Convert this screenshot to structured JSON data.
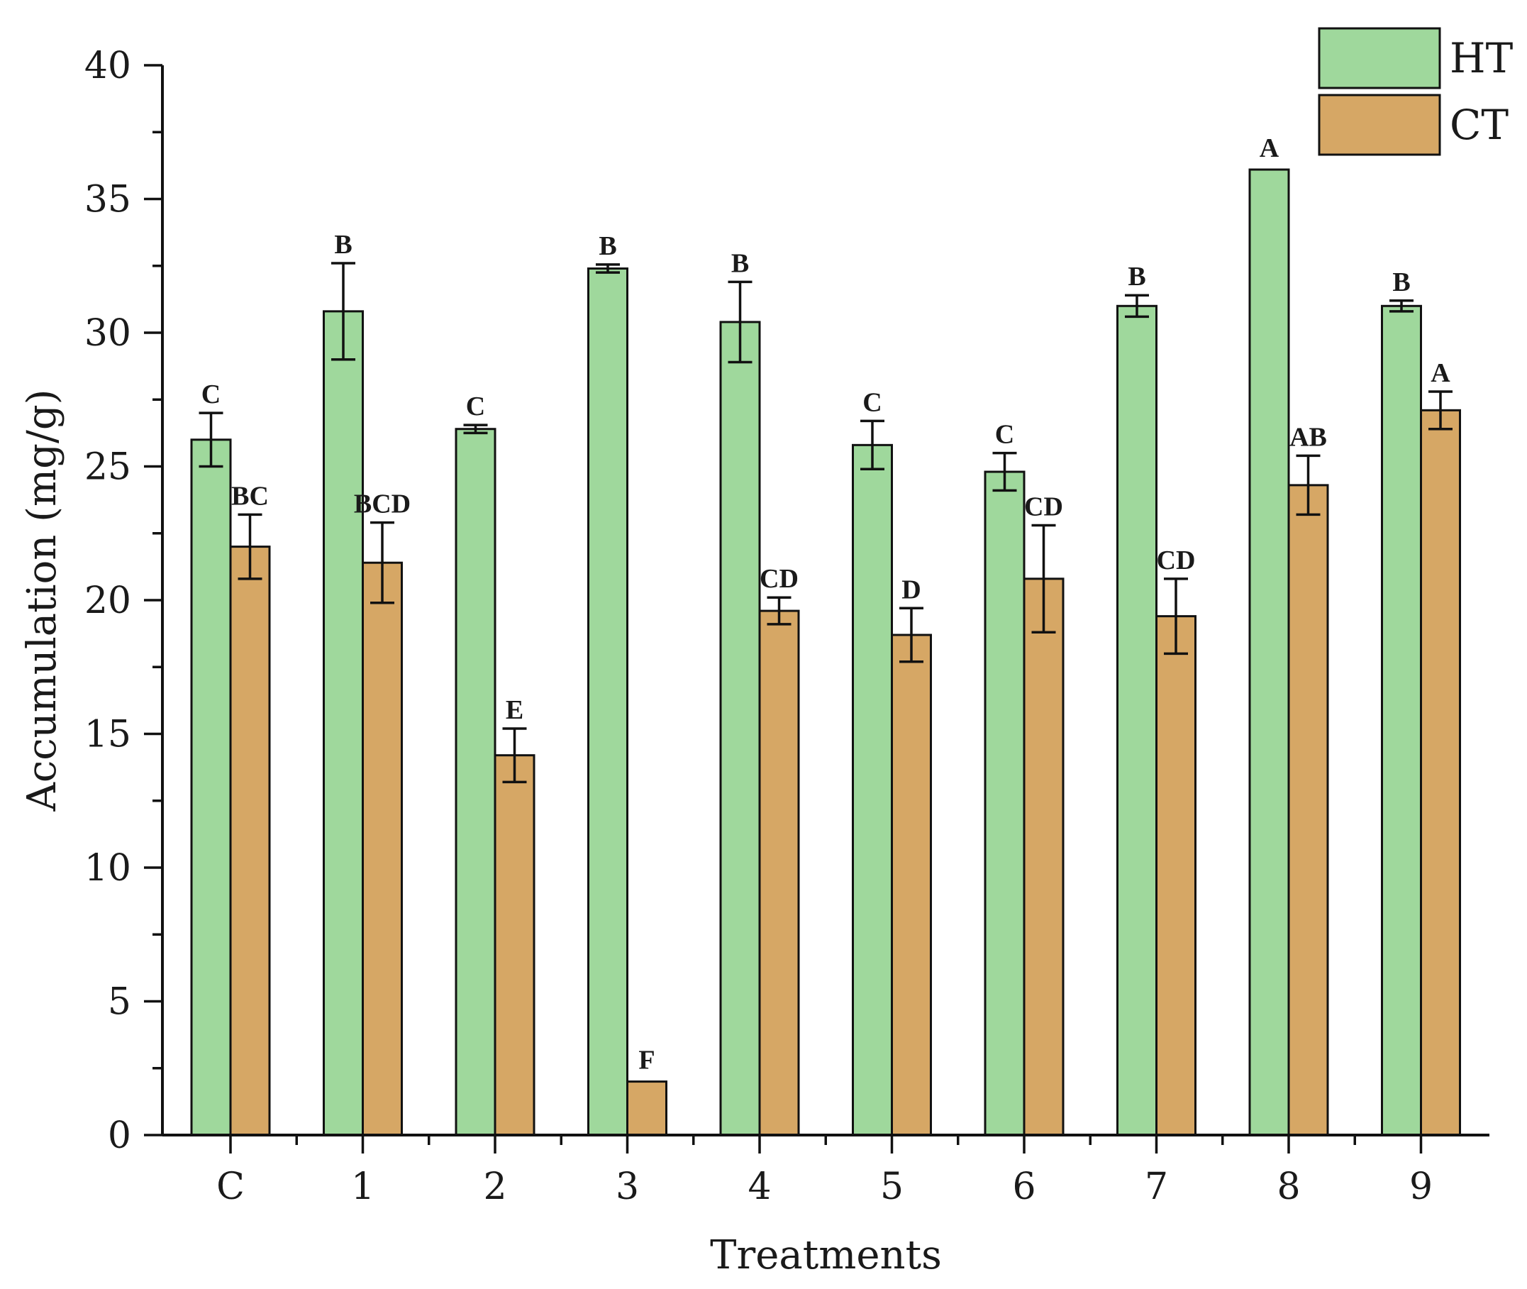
{
  "chart_data": {
    "type": "bar",
    "title": "",
    "xlabel": "Treatments",
    "ylabel": "Accumulation (mg/g)",
    "ylim": [
      0,
      40
    ],
    "yticks": [
      0,
      5,
      10,
      15,
      20,
      25,
      30,
      35,
      40
    ],
    "categories": [
      "C",
      "1",
      "2",
      "3",
      "4",
      "5",
      "6",
      "7",
      "8",
      "9"
    ],
    "series": [
      {
        "name": "HT",
        "color": "#9fd89c",
        "values": [
          26.0,
          30.8,
          26.4,
          32.4,
          30.4,
          25.8,
          24.8,
          31.0,
          36.1,
          31.0
        ],
        "errors": [
          1.0,
          1.8,
          0.15,
          0.15,
          1.5,
          0.9,
          0.7,
          0.4,
          0.0,
          0.2
        ],
        "labels": [
          "C",
          "B",
          "C",
          "B",
          "B",
          "C",
          "C",
          "B",
          "A",
          "B"
        ]
      },
      {
        "name": "CT",
        "color": "#d6a765",
        "values": [
          22.0,
          21.4,
          14.2,
          2.0,
          19.6,
          18.7,
          20.8,
          19.4,
          24.3,
          27.1
        ],
        "errors": [
          1.2,
          1.5,
          1.0,
          0.0,
          0.5,
          1.0,
          2.0,
          1.4,
          1.1,
          0.7
        ],
        "labels": [
          "BC",
          "BCD",
          "E",
          "F",
          "CD",
          "D",
          "CD",
          "CD",
          "AB",
          "A"
        ]
      }
    ],
    "legend": {
      "position": "top-right",
      "entries": [
        "HT",
        "CT"
      ]
    }
  }
}
